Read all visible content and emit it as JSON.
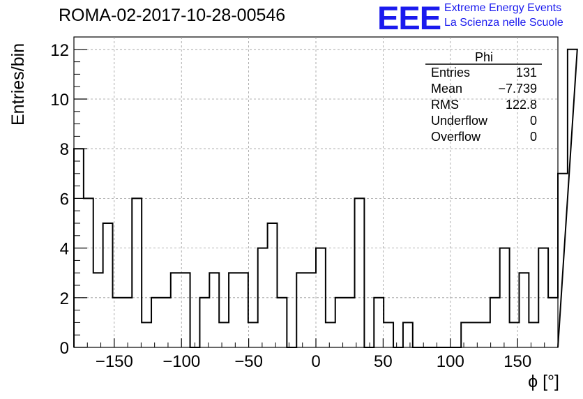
{
  "header": {
    "run_title": "ROMA-02-2017-10-28-00546",
    "logo_text": "EEE",
    "logo_line1": "Extreme Energy Events",
    "logo_line2": "La Scienza nelle Scuole",
    "logo_color": "#1a1aee"
  },
  "stats_box": {
    "title": "Phi",
    "rows": [
      {
        "label": "Entries",
        "value": "131"
      },
      {
        "label": "Mean",
        "value": "−7.739"
      },
      {
        "label": "RMS",
        "value": "122.8"
      },
      {
        "label": "Underflow",
        "value": "0"
      },
      {
        "label": "Overflow",
        "value": "0"
      }
    ]
  },
  "chart_data": {
    "type": "bar",
    "histogram": true,
    "xlabel": "ϕ [°]",
    "ylabel": "Entries/bin",
    "xlim": [
      -180,
      180
    ],
    "ylim": [
      0,
      12.5
    ],
    "bin_width": 7.2,
    "x_ticks": [
      -150,
      -100,
      -50,
      0,
      50,
      100,
      150
    ],
    "x_tick_labels": [
      "−150",
      "−100",
      "−50",
      "0",
      "50",
      "100",
      "150"
    ],
    "y_ticks": [
      0,
      2,
      4,
      6,
      8,
      10,
      12
    ],
    "y_tick_labels": [
      "0",
      "2",
      "4",
      "6",
      "8",
      "10",
      "12"
    ],
    "grid": true,
    "line_color": "#000000",
    "series": [
      {
        "values": [
          8,
          6,
          3,
          5,
          2,
          2,
          6,
          1,
          2,
          2,
          3,
          3,
          0,
          2,
          3,
          1,
          3,
          3,
          1,
          4,
          5,
          2,
          0,
          3,
          3,
          4,
          1,
          2,
          2,
          6,
          0,
          2,
          1,
          0,
          1,
          0,
          0,
          0,
          0,
          0,
          1,
          1,
          1,
          2,
          4,
          1,
          3,
          1,
          4,
          2,
          7,
          12
        ]
      }
    ]
  }
}
